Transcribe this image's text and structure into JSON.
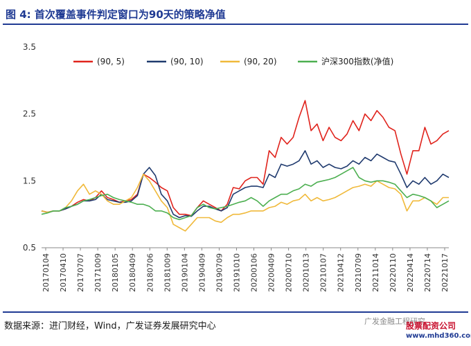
{
  "title": "图 4:  首次覆盖事件判定窗口为90天的策略净值",
  "source": "数据来源：进门财经，Wind，广发证券发展研究中心",
  "watermark": {
    "text": "广发金融工程研究",
    "logo_name": "股票配资公司",
    "logo_url": "www.mhd360.com"
  },
  "chart_data": {
    "type": "line",
    "ylim": [
      0.5,
      3.5
    ],
    "yticks": [
      "3.5",
      "2.5",
      "1.5",
      "0.5"
    ],
    "xticks": [
      "20170104",
      "20170410",
      "20170707",
      "20171009",
      "20180105",
      "20180409",
      "20180706",
      "20181009",
      "20190104",
      "20190409",
      "20190709",
      "20191010",
      "20200106",
      "20200409",
      "20200710",
      "20201013",
      "20210107",
      "20210412",
      "20210709",
      "20211014",
      "20220110",
      "20220414",
      "20220714",
      "20221017"
    ],
    "legend_position": "top",
    "series": [
      {
        "name": "(90, 5)",
        "color": "#e0231c",
        "values": [
          1.05,
          1.03,
          1.05,
          1.05,
          1.08,
          1.12,
          1.18,
          1.22,
          1.2,
          1.25,
          1.35,
          1.25,
          1.22,
          1.18,
          1.2,
          1.22,
          1.3,
          1.6,
          1.55,
          1.48,
          1.4,
          1.35,
          1.1,
          1.0,
          1.0,
          0.98,
          1.1,
          1.2,
          1.15,
          1.1,
          1.05,
          1.15,
          1.4,
          1.38,
          1.5,
          1.55,
          1.55,
          1.45,
          1.95,
          1.85,
          2.15,
          2.05,
          2.15,
          2.45,
          2.7,
          2.25,
          2.35,
          2.1,
          2.3,
          2.15,
          2.1,
          2.2,
          2.4,
          2.25,
          2.5,
          2.4,
          2.55,
          2.45,
          2.3,
          2.25,
          1.9,
          1.6,
          1.95,
          1.95,
          2.3,
          2.05,
          2.1,
          2.2,
          2.25
        ]
      },
      {
        "name": "(90, 10)",
        "color": "#1f3a6e",
        "values": [
          1.05,
          1.03,
          1.05,
          1.05,
          1.08,
          1.12,
          1.15,
          1.2,
          1.2,
          1.22,
          1.3,
          1.22,
          1.2,
          1.18,
          1.18,
          1.2,
          1.28,
          1.6,
          1.7,
          1.58,
          1.3,
          1.2,
          1.0,
          0.95,
          0.98,
          0.97,
          1.05,
          1.12,
          1.12,
          1.08,
          1.05,
          1.1,
          1.3,
          1.35,
          1.4,
          1.42,
          1.42,
          1.4,
          1.6,
          1.55,
          1.75,
          1.72,
          1.75,
          1.8,
          1.95,
          1.75,
          1.8,
          1.7,
          1.75,
          1.7,
          1.68,
          1.72,
          1.8,
          1.75,
          1.85,
          1.8,
          1.9,
          1.85,
          1.8,
          1.78,
          1.6,
          1.4,
          1.5,
          1.45,
          1.55,
          1.45,
          1.5,
          1.6,
          1.55
        ]
      },
      {
        "name": "(90, 20)",
        "color": "#f0b93a",
        "values": [
          1.05,
          1.03,
          1.05,
          1.05,
          1.1,
          1.2,
          1.35,
          1.45,
          1.3,
          1.35,
          1.3,
          1.2,
          1.15,
          1.15,
          1.2,
          1.25,
          1.4,
          1.6,
          1.5,
          1.35,
          1.2,
          1.1,
          0.85,
          0.8,
          0.75,
          0.85,
          0.95,
          0.95,
          0.95,
          0.9,
          0.88,
          0.95,
          1.0,
          1.0,
          1.02,
          1.05,
          1.05,
          1.05,
          1.1,
          1.12,
          1.18,
          1.15,
          1.2,
          1.22,
          1.3,
          1.2,
          1.25,
          1.2,
          1.22,
          1.25,
          1.3,
          1.35,
          1.4,
          1.42,
          1.45,
          1.42,
          1.5,
          1.45,
          1.4,
          1.38,
          1.3,
          1.05,
          1.2,
          1.2,
          1.25,
          1.2,
          1.15,
          1.25,
          1.25
        ]
      },
      {
        "name": "沪深300指数(净值)",
        "color": "#4caf50",
        "values": [
          1.0,
          1.02,
          1.05,
          1.05,
          1.1,
          1.12,
          1.15,
          1.2,
          1.22,
          1.25,
          1.28,
          1.3,
          1.25,
          1.22,
          1.2,
          1.18,
          1.15,
          1.15,
          1.12,
          1.05,
          1.05,
          1.02,
          0.95,
          0.92,
          0.95,
          0.98,
          1.1,
          1.15,
          1.1,
          1.08,
          1.1,
          1.12,
          1.15,
          1.18,
          1.2,
          1.25,
          1.2,
          1.12,
          1.2,
          1.25,
          1.3,
          1.3,
          1.35,
          1.38,
          1.45,
          1.42,
          1.48,
          1.5,
          1.52,
          1.55,
          1.6,
          1.65,
          1.7,
          1.55,
          1.5,
          1.48,
          1.5,
          1.5,
          1.48,
          1.45,
          1.35,
          1.25,
          1.3,
          1.28,
          1.25,
          1.2,
          1.1,
          1.15,
          1.2
        ]
      }
    ]
  }
}
